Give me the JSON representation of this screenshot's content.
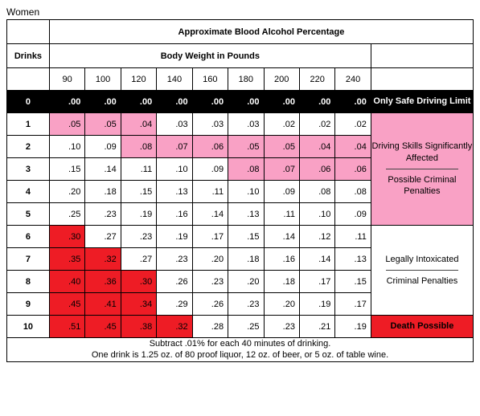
{
  "title": "Women",
  "headers": {
    "main": "Approximate Blood Alcohol Percentage",
    "drinks": "Drinks",
    "body_weight": "Body Weight in Pounds"
  },
  "weights": [
    "90",
    "100",
    "120",
    "140",
    "160",
    "180",
    "200",
    "220",
    "240"
  ],
  "zero_row": {
    "drinks": "0",
    "values": [
      ".00",
      ".00",
      ".00",
      ".00",
      ".00",
      ".00",
      ".00",
      ".00",
      ".00"
    ]
  },
  "rows": [
    {
      "drinks": "1",
      "values": [
        ".05",
        ".05",
        ".04",
        ".03",
        ".03",
        ".03",
        ".02",
        ".02",
        ".02"
      ],
      "colors": [
        "pink",
        "pink",
        "pink",
        "",
        "",
        "",
        "",
        "",
        ""
      ]
    },
    {
      "drinks": "2",
      "values": [
        ".10",
        ".09",
        ".08",
        ".07",
        ".06",
        ".05",
        ".05",
        ".04",
        ".04"
      ],
      "colors": [
        "",
        "",
        "pink",
        "pink",
        "pink",
        "pink",
        "pink",
        "pink",
        "pink"
      ]
    },
    {
      "drinks": "3",
      "values": [
        ".15",
        ".14",
        ".11",
        ".10",
        ".09",
        ".08",
        ".07",
        ".06",
        ".06"
      ],
      "colors": [
        "",
        "",
        "",
        "",
        "",
        "pink",
        "pink",
        "pink",
        "pink"
      ]
    },
    {
      "drinks": "4",
      "values": [
        ".20",
        ".18",
        ".15",
        ".13",
        ".11",
        ".10",
        ".09",
        ".08",
        ".08"
      ],
      "colors": [
        "",
        "",
        "",
        "",
        "",
        "",
        "",
        "",
        ""
      ]
    },
    {
      "drinks": "5",
      "values": [
        ".25",
        ".23",
        ".19",
        ".16",
        ".14",
        ".13",
        ".11",
        ".10",
        ".09"
      ],
      "colors": [
        "",
        "",
        "",
        "",
        "",
        "",
        "",
        "",
        ""
      ]
    },
    {
      "drinks": "6",
      "values": [
        ".30",
        ".27",
        ".23",
        ".19",
        ".17",
        ".15",
        ".14",
        ".12",
        ".11"
      ],
      "colors": [
        "red",
        "",
        "",
        "",
        "",
        "",
        "",
        "",
        ""
      ]
    },
    {
      "drinks": "7",
      "values": [
        ".35",
        ".32",
        ".27",
        ".23",
        ".20",
        ".18",
        ".16",
        ".14",
        ".13"
      ],
      "colors": [
        "red",
        "red",
        "",
        "",
        "",
        "",
        "",
        "",
        ""
      ]
    },
    {
      "drinks": "8",
      "values": [
        ".40",
        ".36",
        ".30",
        ".26",
        ".23",
        ".20",
        ".18",
        ".17",
        ".15"
      ],
      "colors": [
        "red",
        "red",
        "red",
        "",
        "",
        "",
        "",
        "",
        ""
      ]
    },
    {
      "drinks": "9",
      "values": [
        ".45",
        ".41",
        ".34",
        ".29",
        ".26",
        ".23",
        ".20",
        ".19",
        ".17"
      ],
      "colors": [
        "red",
        "red",
        "red",
        "",
        "",
        "",
        "",
        "",
        ""
      ]
    },
    {
      "drinks": "10",
      "values": [
        ".51",
        ".45",
        ".38",
        ".32",
        ".28",
        ".25",
        ".23",
        ".21",
        ".19"
      ],
      "colors": [
        "red",
        "red",
        "red",
        "red",
        "",
        "",
        "",
        "",
        ""
      ]
    }
  ],
  "annotations": {
    "zero": "Only Safe Driving Limit",
    "impaired": {
      "line1": "Driving Skills Significantly Affected",
      "line2": "Possible Criminal Penalties"
    },
    "intoxicated": {
      "line1": "Legally Intoxicated",
      "line2": "Criminal Penalties"
    },
    "death": "Death Possible"
  },
  "footnote": {
    "line1": "Subtract .01% for each 40 minutes of drinking.",
    "line2": "One drink is 1.25 oz. of 80 proof liquor, 12 oz. of beer, or 5 oz. of table wine."
  },
  "colors": {
    "pink": "#f9a1c5",
    "red": "#ee1c25",
    "black": "#000000",
    "white": "#ffffff"
  }
}
